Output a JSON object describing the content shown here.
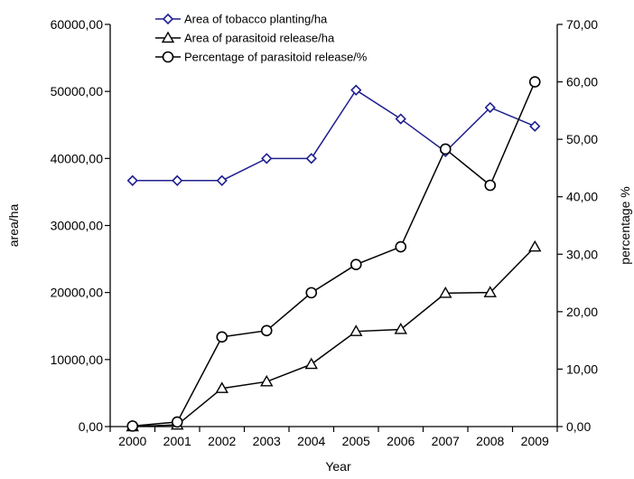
{
  "chart_data": {
    "type": "line",
    "title": "",
    "xlabel": "Year",
    "ylabel": "area/ha",
    "y2label": "percentage %",
    "categories": [
      "2000",
      "2001",
      "2002",
      "2003",
      "2004",
      "2005",
      "2006",
      "2007",
      "2008",
      "2009"
    ],
    "ylim": [
      0,
      60000
    ],
    "y_ticks": [
      "0,00",
      "10000,00",
      "20000,00",
      "30000,00",
      "40000,00",
      "50000,00",
      "60000,00"
    ],
    "y2lim": [
      0,
      70
    ],
    "y2_ticks": [
      "0,00",
      "10,00",
      "20,00",
      "30,00",
      "40,00",
      "50,00",
      "60,00",
      "70,00"
    ],
    "grid": false,
    "legend_position": "top-center",
    "series": [
      {
        "name": "Area of tobacco planting/ha",
        "axis": "left",
        "marker": "diamond",
        "color": "#1f1f8f",
        "values": [
          36700,
          36700,
          36700,
          40000,
          40000,
          50200,
          45900,
          41000,
          47600,
          44800
        ]
      },
      {
        "name": "Area of parasitoid release/ha",
        "axis": "left",
        "marker": "triangle",
        "color": "#000000",
        "values": [
          0,
          250,
          5700,
          6700,
          9300,
          14200,
          14500,
          19900,
          20000,
          26800
        ]
      },
      {
        "name": "Percentage of parasitoid release/%",
        "axis": "right",
        "marker": "circle",
        "color": "#000000",
        "values": [
          0.1,
          0.8,
          15.6,
          16.7,
          23.3,
          28.2,
          31.3,
          48.3,
          42.0,
          60.0
        ]
      }
    ]
  }
}
